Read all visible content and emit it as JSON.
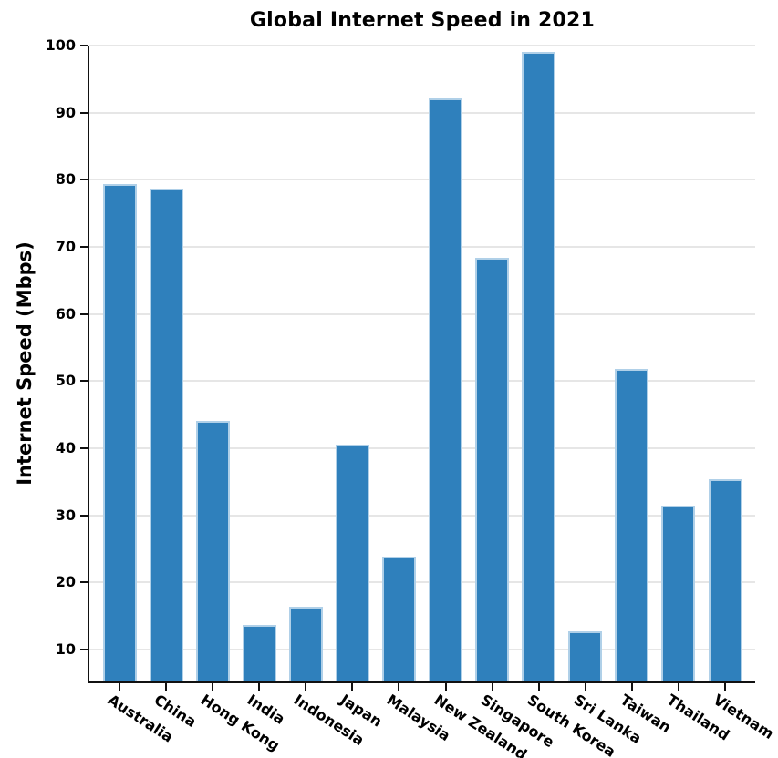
{
  "chart_data": {
    "type": "bar",
    "title": "Global Internet Speed in 2021",
    "xlabel": "",
    "ylabel": "Internet Speed (Mbps)",
    "categories": [
      "Australia",
      "China",
      "Hong Kong",
      "India",
      "Indonesia",
      "Japan",
      "Malaysia",
      "New Zealand",
      "Singapore",
      "South Korea",
      "Sri Lanka",
      "Taiwan",
      "Thailand",
      "Vietnam"
    ],
    "values": [
      79.3,
      78.7,
      44.1,
      13.6,
      16.4,
      40.6,
      23.9,
      92.1,
      68.4,
      99.1,
      12.7,
      51.8,
      31.5,
      35.4
    ],
    "yticks": [
      10,
      20,
      30,
      40,
      50,
      60,
      70,
      80,
      90,
      100
    ],
    "ylim": [
      5.25,
      100
    ],
    "grid": "horizontal",
    "legend": "none",
    "x_label_rotation_deg": -33,
    "bar_color": "#2f80bc",
    "bar_edge_color": "#b0d0e8",
    "grid_color": "#e6e6e6",
    "axis_color": "#111111",
    "text_color": "#000000"
  }
}
